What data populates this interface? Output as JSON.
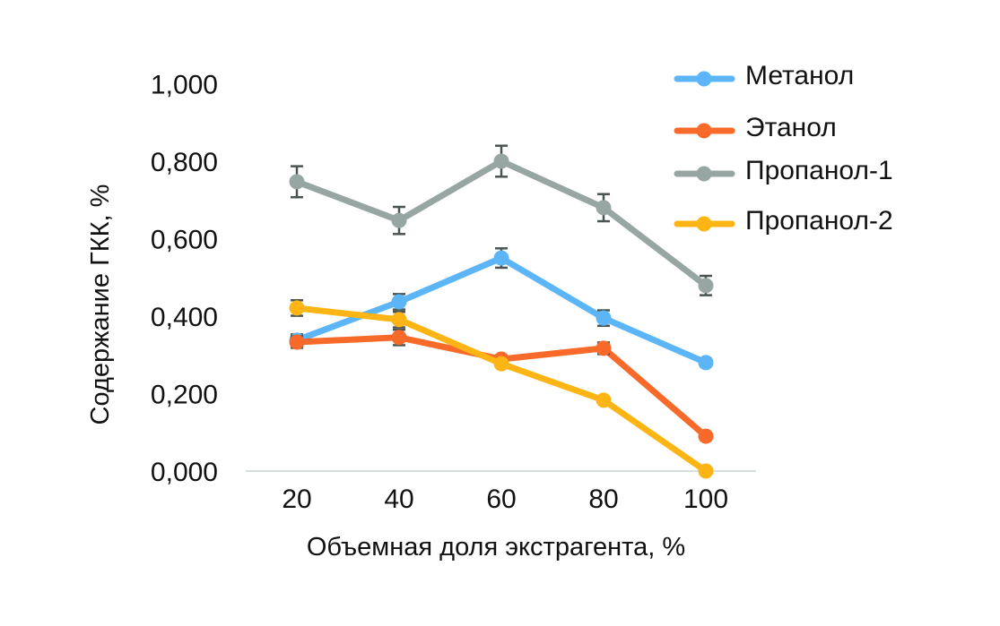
{
  "chart_data": {
    "type": "line",
    "title": "",
    "xlabel": "Объемная доля экстрагента, %",
    "ylabel": "Содержание ГКК, %",
    "categories": [
      "20",
      "40",
      "60",
      "80",
      "100"
    ],
    "ylim": [
      0,
      1
    ],
    "yticks": [
      0,
      0.2,
      0.4,
      0.6,
      0.8,
      1.0
    ],
    "ytick_labels": [
      "0,000",
      "0,200",
      "0,400",
      "0,600",
      "0,800",
      "1,000"
    ],
    "grid": false,
    "legend_position": "top-right",
    "series": [
      {
        "name": "Метанол",
        "color": "#5BB5F7",
        "values": [
          0.338,
          0.437,
          0.55,
          0.395,
          0.28
        ],
        "errors": [
          0.015,
          0.02,
          0.025,
          0.02,
          0.01
        ]
      },
      {
        "name": "Этанол",
        "color": "#F76A2A",
        "values": [
          0.333,
          0.345,
          0.289,
          0.317,
          0.09
        ],
        "errors": [
          0.015,
          0.02,
          0.01,
          0.015,
          0
        ]
      },
      {
        "name": "Пропанол-1",
        "color": "#97A6A3",
        "values": [
          0.747,
          0.647,
          0.8,
          0.68,
          0.479
        ],
        "errors": [
          0.04,
          0.035,
          0.04,
          0.035,
          0.025
        ]
      },
      {
        "name": "Пропанол-2",
        "color": "#FDB515",
        "values": [
          0.421,
          0.391,
          0.277,
          0.183,
          0.0
        ],
        "errors": [
          0.02,
          0.02,
          0,
          0,
          0
        ]
      }
    ]
  }
}
